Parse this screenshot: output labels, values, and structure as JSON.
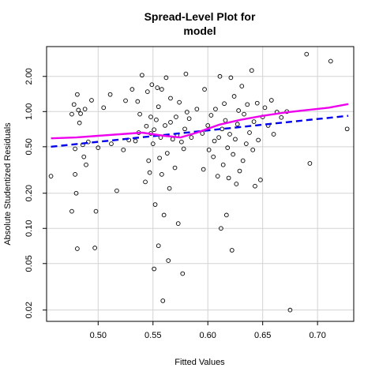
{
  "chart_data": {
    "type": "scatter",
    "title": [
      "Spread-Level Plot for",
      "model"
    ],
    "xlabel": "Fitted Values",
    "ylabel": "Absolute Studentized Residuals",
    "xlim": [
      0.453,
      0.733
    ],
    "ylim": [
      0.016,
      3.6
    ],
    "y_scale": "log",
    "grid": true,
    "x_ticks": [
      0.5,
      0.55,
      0.6,
      0.65,
      0.7
    ],
    "x_tick_labels": [
      "0.50",
      "0.55",
      "0.60",
      "0.65",
      "0.70"
    ],
    "y_ticks": [
      0.02,
      0.05,
      0.1,
      0.2,
      0.5,
      1.0,
      2.0
    ],
    "y_tick_labels": [
      "0.02",
      "0.05",
      "0.10",
      "0.20",
      "0.50",
      "1.00",
      "2.00"
    ],
    "colors": {
      "linear_fit": "#0000ee",
      "smooth_fit": "#ee00ee",
      "points": "#000000",
      "grid": "#d3d3d3"
    },
    "linear_fit": {
      "x": [
        0.457,
        0.728
      ],
      "y": [
        0.5,
        0.92
      ]
    },
    "smooth_fit": {
      "x": [
        0.457,
        0.48,
        0.5,
        0.52,
        0.54,
        0.56,
        0.575,
        0.59,
        0.61,
        0.63,
        0.65,
        0.67,
        0.69,
        0.71,
        0.728
      ],
      "y": [
        0.59,
        0.6,
        0.62,
        0.64,
        0.66,
        0.62,
        0.6,
        0.66,
        0.77,
        0.85,
        0.92,
        0.98,
        1.03,
        1.08,
        1.16
      ]
    },
    "points": [
      [
        0.457,
        0.28
      ],
      [
        0.476,
        0.14
      ],
      [
        0.476,
        0.95
      ],
      [
        0.478,
        1.15
      ],
      [
        0.479,
        0.48
      ],
      [
        0.479,
        0.29
      ],
      [
        0.48,
        0.2
      ],
      [
        0.481,
        1.4
      ],
      [
        0.482,
        1.03
      ],
      [
        0.481,
        0.067
      ],
      [
        0.483,
        0.8
      ],
      [
        0.484,
        0.96
      ],
      [
        0.486,
        0.52
      ],
      [
        0.487,
        0.41
      ],
      [
        0.488,
        1.05
      ],
      [
        0.489,
        0.35
      ],
      [
        0.491,
        0.55
      ],
      [
        0.494,
        1.25
      ],
      [
        0.497,
        0.068
      ],
      [
        0.498,
        0.14
      ],
      [
        0.5,
        0.49
      ],
      [
        0.505,
        1.08
      ],
      [
        0.511,
        1.4
      ],
      [
        0.512,
        0.53
      ],
      [
        0.517,
        0.21
      ],
      [
        0.523,
        0.47
      ],
      [
        0.525,
        1.24
      ],
      [
        0.528,
        0.57
      ],
      [
        0.531,
        1.55
      ],
      [
        0.534,
        0.56
      ],
      [
        0.536,
        1.22
      ],
      [
        0.537,
        0.66
      ],
      [
        0.538,
        0.95
      ],
      [
        0.54,
        2.05
      ],
      [
        0.543,
        0.25
      ],
      [
        0.544,
        0.75
      ],
      [
        0.545,
        1.48
      ],
      [
        0.546,
        0.38
      ],
      [
        0.547,
        0.3
      ],
      [
        0.548,
        0.65
      ],
      [
        0.548,
        0.9
      ],
      [
        0.549,
        1.7
      ],
      [
        0.55,
        0.53
      ],
      [
        0.551,
        0.045
      ],
      [
        0.551,
        0.7
      ],
      [
        0.552,
        0.16
      ],
      [
        0.553,
        0.85
      ],
      [
        0.554,
        1.6
      ],
      [
        0.555,
        1.1
      ],
      [
        0.555,
        0.071
      ],
      [
        0.556,
        0.4
      ],
      [
        0.557,
        0.6
      ],
      [
        0.558,
        0.29
      ],
      [
        0.558,
        1.55
      ],
      [
        0.559,
        0.024
      ],
      [
        0.56,
        0.13
      ],
      [
        0.561,
        0.76
      ],
      [
        0.562,
        1.95
      ],
      [
        0.563,
        0.44
      ],
      [
        0.564,
        0.053
      ],
      [
        0.565,
        0.22
      ],
      [
        0.566,
        1.3
      ],
      [
        0.566,
        0.81
      ],
      [
        0.568,
        0.58
      ],
      [
        0.57,
        0.33
      ],
      [
        0.571,
        0.9
      ],
      [
        0.572,
        0.63
      ],
      [
        0.573,
        0.11
      ],
      [
        0.574,
        1.2
      ],
      [
        0.576,
        0.55
      ],
      [
        0.577,
        0.041
      ],
      [
        0.578,
        0.48
      ],
      [
        0.579,
        0.71
      ],
      [
        0.58,
        2.1
      ],
      [
        0.581,
        0.99
      ],
      [
        0.583,
        0.87
      ],
      [
        0.585,
        0.6
      ],
      [
        0.59,
        1.05
      ],
      [
        0.595,
        0.65
      ],
      [
        0.596,
        0.32
      ],
      [
        0.597,
        1.55
      ],
      [
        0.6,
        0.76
      ],
      [
        0.601,
        0.47
      ],
      [
        0.603,
        0.93
      ],
      [
        0.605,
        0.41
      ],
      [
        0.606,
        0.56
      ],
      [
        0.607,
        1.05
      ],
      [
        0.609,
        0.28
      ],
      [
        0.61,
        0.6
      ],
      [
        0.611,
        2.0
      ],
      [
        0.612,
        0.1
      ],
      [
        0.613,
        0.71
      ],
      [
        0.614,
        0.35
      ],
      [
        0.615,
        1.17
      ],
      [
        0.616,
        0.84
      ],
      [
        0.617,
        0.13
      ],
      [
        0.618,
        0.49
      ],
      [
        0.619,
        0.27
      ],
      [
        0.62,
        0.64
      ],
      [
        0.621,
        1.95
      ],
      [
        0.622,
        0.065
      ],
      [
        0.623,
        0.43
      ],
      [
        0.624,
        1.35
      ],
      [
        0.625,
        0.58
      ],
      [
        0.626,
        0.24
      ],
      [
        0.627,
        0.78
      ],
      [
        0.628,
        1.02
      ],
      [
        0.629,
        0.31
      ],
      [
        0.631,
        1.65
      ],
      [
        0.632,
        0.38
      ],
      [
        0.633,
        0.95
      ],
      [
        0.635,
        0.53
      ],
      [
        0.636,
        1.15
      ],
      [
        0.638,
        0.66
      ],
      [
        0.64,
        2.25
      ],
      [
        0.641,
        0.47
      ],
      [
        0.642,
        0.82
      ],
      [
        0.643,
        0.23
      ],
      [
        0.645,
        1.18
      ],
      [
        0.646,
        0.57
      ],
      [
        0.648,
        0.26
      ],
      [
        0.65,
        0.9
      ],
      [
        0.652,
        1.08
      ],
      [
        0.655,
        0.76
      ],
      [
        0.658,
        1.25
      ],
      [
        0.66,
        0.64
      ],
      [
        0.663,
        0.99
      ],
      [
        0.667,
        0.89
      ],
      [
        0.672,
        1.0
      ],
      [
        0.675,
        0.02
      ],
      [
        0.69,
        3.1
      ],
      [
        0.693,
        0.36
      ],
      [
        0.712,
        2.7
      ],
      [
        0.727,
        0.71
      ]
    ]
  }
}
